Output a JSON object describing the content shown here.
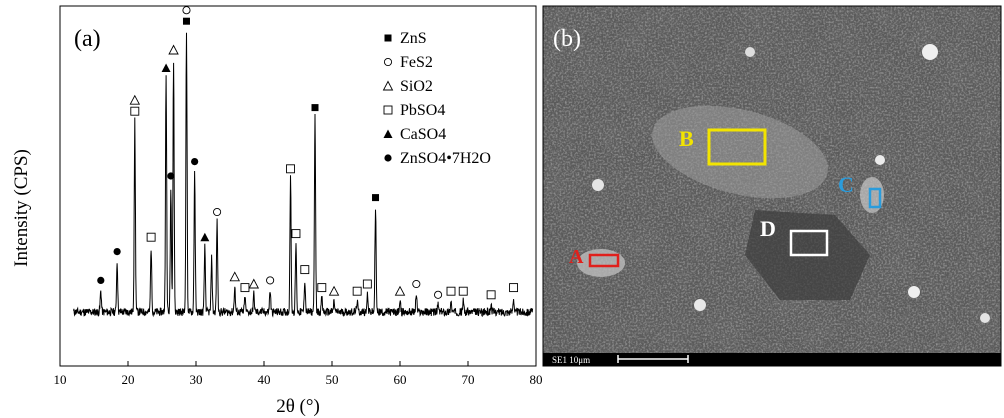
{
  "chart_data": {
    "type": "line",
    "panel_label": "(a)",
    "xlabel": "2θ (°)",
    "ylabel": "Intensity (CPS)",
    "xlim": [
      10,
      80
    ],
    "xticks": [
      10,
      20,
      30,
      40,
      50,
      60,
      70,
      80
    ],
    "ylim": [
      0,
      100
    ],
    "yticks_shown": false,
    "grid": false,
    "legend_position": "top-right",
    "legend": [
      {
        "symbol": "filled-square",
        "label": "ZnS"
      },
      {
        "symbol": "open-circle",
        "label": "FeS2"
      },
      {
        "symbol": "open-triangle",
        "label": "SiO2"
      },
      {
        "symbol": "open-square",
        "label": "PbSO4"
      },
      {
        "symbol": "filled-triangle",
        "label": "CaSO4"
      },
      {
        "symbol": "filled-circle",
        "label": "ZnSO4•7H2O"
      }
    ],
    "baseline": 15,
    "peaks": [
      {
        "x": 16.0,
        "y": 21
      },
      {
        "x": 18.4,
        "y": 29
      },
      {
        "x": 21.0,
        "y": 68
      },
      {
        "x": 23.4,
        "y": 33
      },
      {
        "x": 25.6,
        "y": 80
      },
      {
        "x": 26.3,
        "y": 50
      },
      {
        "x": 26.7,
        "y": 85
      },
      {
        "x": 28.6,
        "y": 93
      },
      {
        "x": 29.8,
        "y": 54
      },
      {
        "x": 31.3,
        "y": 33
      },
      {
        "x": 32.3,
        "y": 30
      },
      {
        "x": 33.1,
        "y": 40
      },
      {
        "x": 35.7,
        "y": 22
      },
      {
        "x": 37.2,
        "y": 19
      },
      {
        "x": 38.5,
        "y": 20
      },
      {
        "x": 40.9,
        "y": 21
      },
      {
        "x": 43.9,
        "y": 52
      },
      {
        "x": 44.7,
        "y": 34
      },
      {
        "x": 46.0,
        "y": 24
      },
      {
        "x": 47.5,
        "y": 69
      },
      {
        "x": 48.5,
        "y": 19
      },
      {
        "x": 50.3,
        "y": 18
      },
      {
        "x": 53.7,
        "y": 18
      },
      {
        "x": 55.2,
        "y": 20
      },
      {
        "x": 56.4,
        "y": 44
      },
      {
        "x": 60.0,
        "y": 18
      },
      {
        "x": 62.4,
        "y": 20
      },
      {
        "x": 65.6,
        "y": 17
      },
      {
        "x": 67.5,
        "y": 18
      },
      {
        "x": 69.3,
        "y": 18
      },
      {
        "x": 73.4,
        "y": 17
      },
      {
        "x": 76.7,
        "y": 19
      }
    ],
    "markers": [
      {
        "x": 16.0,
        "symbol": "filled-circle",
        "row": 0
      },
      {
        "x": 18.4,
        "symbol": "filled-circle",
        "row": 0
      },
      {
        "x": 21.0,
        "symbol": "open-square",
        "row": 0
      },
      {
        "x": 21.0,
        "symbol": "open-triangle",
        "row": 1
      },
      {
        "x": 23.4,
        "symbol": "open-square",
        "row": 0
      },
      {
        "x": 25.6,
        "symbol": "filled-triangle",
        "row": 0
      },
      {
        "x": 26.3,
        "symbol": "filled-circle",
        "row": 0
      },
      {
        "x": 26.7,
        "symbol": "open-triangle",
        "row": 0
      },
      {
        "x": 28.6,
        "symbol": "filled-square",
        "row": 0
      },
      {
        "x": 28.6,
        "symbol": "open-circle",
        "row": 1
      },
      {
        "x": 29.8,
        "symbol": "filled-circle",
        "row": 0
      },
      {
        "x": 31.3,
        "symbol": "filled-triangle",
        "row": 0
      },
      {
        "x": 33.1,
        "symbol": "open-circle",
        "row": 0
      },
      {
        "x": 35.7,
        "symbol": "open-triangle",
        "row": 0
      },
      {
        "x": 37.2,
        "symbol": "open-square",
        "row": 0
      },
      {
        "x": 38.5,
        "symbol": "open-triangle",
        "row": 0
      },
      {
        "x": 40.9,
        "symbol": "open-circle",
        "row": 0
      },
      {
        "x": 43.9,
        "symbol": "open-square",
        "row": 0
      },
      {
        "x": 44.7,
        "symbol": "open-square",
        "row": 0
      },
      {
        "x": 46.0,
        "symbol": "open-square",
        "row": 0
      },
      {
        "x": 47.5,
        "symbol": "filled-square",
        "row": 0
      },
      {
        "x": 48.5,
        "symbol": "open-square",
        "row": 0
      },
      {
        "x": 50.3,
        "symbol": "open-triangle",
        "row": 0
      },
      {
        "x": 53.7,
        "symbol": "open-square",
        "row": 0
      },
      {
        "x": 55.2,
        "symbol": "open-square",
        "row": 0
      },
      {
        "x": 56.4,
        "symbol": "filled-square",
        "row": 0
      },
      {
        "x": 60.0,
        "symbol": "open-triangle",
        "row": 0
      },
      {
        "x": 62.4,
        "symbol": "open-circle",
        "row": 0
      },
      {
        "x": 65.6,
        "symbol": "open-circle",
        "row": 0
      },
      {
        "x": 67.5,
        "symbol": "open-square",
        "row": 0
      },
      {
        "x": 69.3,
        "symbol": "open-square",
        "row": 0
      },
      {
        "x": 73.4,
        "symbol": "open-square",
        "row": 0
      },
      {
        "x": 76.7,
        "symbol": "open-square",
        "row": 0
      }
    ]
  },
  "micrograph": {
    "panel_label": "(b)",
    "scale_bar_text": "SE1  10μm",
    "regions": [
      {
        "label": "A",
        "color": "#e0201c"
      },
      {
        "label": "B",
        "color": "#f2e400"
      },
      {
        "label": "C",
        "color": "#2a9cdc"
      },
      {
        "label": "D",
        "color": "#ffffff"
      }
    ]
  }
}
